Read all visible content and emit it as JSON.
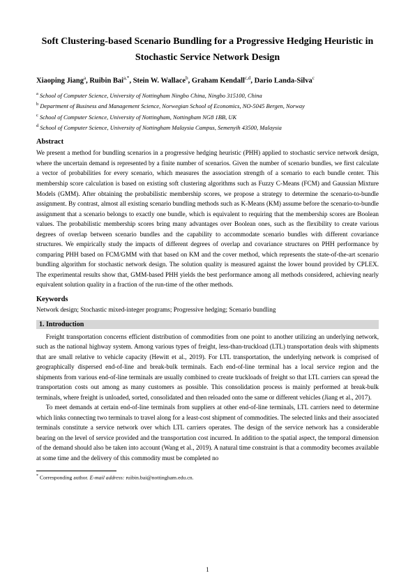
{
  "title": "Soft Clustering-based Scenario Bundling for a Progressive Hedging Heuristic in Stochastic Service Network Design",
  "authors_html": "Xiaoping Jiang",
  "authors": {
    "a1": "Xiaoping Jiang",
    "s1": "a",
    "a2": "Ruibin Bai",
    "s2": "a,*",
    "a3": "Stein W. Wallace",
    "s3": "b",
    "a4": "Graham Kendall",
    "s4": "c,d",
    "a5": "Dario Landa-Silva",
    "s5": "c"
  },
  "affiliations": {
    "a": {
      "sup": "a",
      "text": " School of Computer Science, University of Nottingham Ningbo China, Ningbo 315100, China"
    },
    "b": {
      "sup": "b",
      "text": " Department of Business and Management Science, Norwegian School of Economics, NO-5045 Bergen, Norway"
    },
    "c": {
      "sup": "c",
      "text": " School of Computer Science, University of Nottingham, Nottingham NG8 1BB, UK"
    },
    "d": {
      "sup": "d",
      "text": " School of Computer Science, University of Nottingham Malaysia Campus, Semenyih 43500, Malaysia"
    }
  },
  "abstract_head": "Abstract",
  "abstract_body": "We present a method for bundling scenarios in a progressive hedging heuristic (PHH) applied to stochastic service network design, where the uncertain demand is represented by a finite number of scenarios. Given the number of scenario bundles, we first calculate a vector of probabilities for every scenario, which measures the association strength of a scenario to each bundle center. This membership score calculation is based on existing soft clustering algorithms such as Fuzzy C-Means (FCM) and Gaussian Mixture Models (GMM). After obtaining the probabilistic membership scores, we propose a strategy to determine the scenario-to-bundle assignment. By contrast, almost all existing scenario bundling methods such as K-Means (KM) assume before the scenario-to-bundle assignment that a scenario belongs to exactly one bundle, which is equivalent to requiring that the membership scores are Boolean values. The probabilistic membership scores bring many advantages over Boolean ones, such as the flexibility to create various degrees of overlap between scenario bundles and the capability to accommodate scenario bundles with different covariance structures. We empirically study the impacts of different degrees of overlap and covariance structures on PHH performance by comparing PHH based on FCM/GMM with that based on KM and the cover method, which represents the state-of-the-art scenario bundling algorithm for stochastic network design. The solution quality is measured against the lower bound provided by CPLEX. The experimental results show that, GMM-based PHH yields the best performance among all methods considered, achieving nearly equivalent solution quality in a fraction of the run-time of the other methods.",
  "keywords_head": "Keywords",
  "keywords_body": "Network design; Stochastic mixed-integer programs; Progressive hedging; Scenario bundling",
  "intro_head": "1.  Introduction",
  "para1": "Freight transportation concerns efficient distribution of commodities from one point to another utilizing an underlying network, such as the national highway system. Among various types of freight, less-than-truckload (LTL) transportation deals with shipments that are small relative to vehicle capacity (Hewitt et al., 2019). For LTL transportation, the underlying network is comprised of geographically dispersed end-of-line and break-bulk terminals. Each end-of-line terminal has a local service region and the shipments from various end-of-line terminals are usually combined to create truckloads of freight so that LTL carriers can spread the transportation costs out among as many customers as possible. This consolidation process is mainly performed at break-bulk terminals, where freight is unloaded, sorted, consolidated and then reloaded onto the same or different vehicles (Jiang et al., 2017).",
  "para2": "To meet demands at certain end-of-line terminals from suppliers at other end-of-line terminals, LTL carriers need to determine which links connecting two terminals to travel along for a least-cost shipment of commodities. The selected links and their associated terminals constitute a service network over which LTL carriers operates. The design of the service network has a considerable bearing on the level of service provided and the transportation cost incurred. In addition to the spatial aspect, the temporal dimension of the demand should also be taken into account (Wang et al., 2019). A natural time constraint is that a commodity becomes available at some time and the delivery of this commodity must be completed no",
  "footnote_mark": "*",
  "footnote_label": "  Corresponding author.    ",
  "footnote_email_label": "E-mail address: ",
  "footnote_email": "ruibin.bai@nottingham.edu.cn.",
  "page_number": "1"
}
